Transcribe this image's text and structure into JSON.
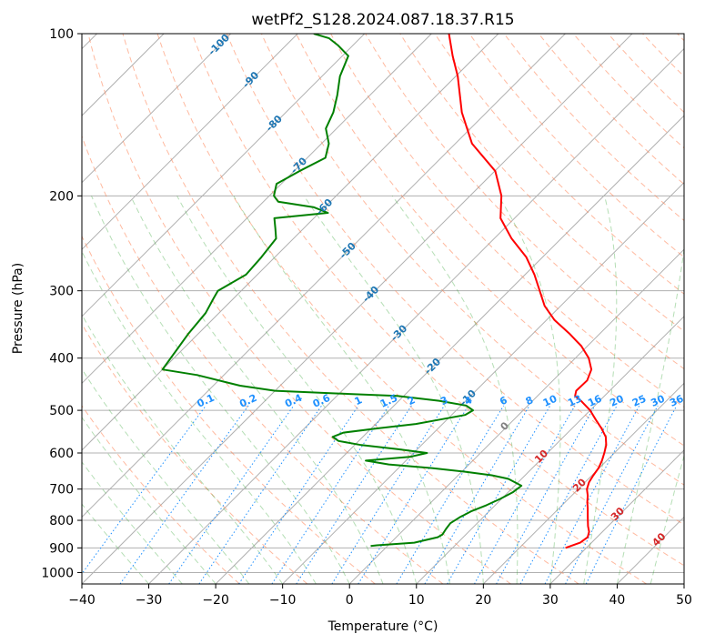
{
  "chart_data": {
    "type": "line",
    "subtype": "skew-t log-p diagram",
    "title": "wetPf2_S128.2024.087.18.37.R15",
    "xlabel": "Temperature (°C)",
    "ylabel": "Pressure (hPa)",
    "xlim": [
      -40,
      50
    ],
    "ylim": [
      1050,
      100
    ],
    "y_scale": "log",
    "x_ticks": [
      "−40",
      "−30",
      "−20",
      "−10",
      "0",
      "10",
      "20",
      "30",
      "40",
      "50"
    ],
    "y_ticks": [
      "100",
      "200",
      "300",
      "400",
      "500",
      "600",
      "700",
      "800",
      "900",
      "1000"
    ],
    "grid": true,
    "series": [
      {
        "role": "temperature",
        "color": "#ff0000",
        "points": [
          [
            900,
            26.9
          ],
          [
            880,
            28.3
          ],
          [
            860,
            28.6
          ],
          [
            840,
            28.0
          ],
          [
            820,
            27.0
          ],
          [
            800,
            26.1
          ],
          [
            780,
            25.2
          ],
          [
            760,
            24.3
          ],
          [
            740,
            23.3
          ],
          [
            720,
            22.4
          ],
          [
            700,
            21.3
          ],
          [
            680,
            20.6
          ],
          [
            660,
            20.2
          ],
          [
            640,
            19.9
          ],
          [
            620,
            19.3
          ],
          [
            600,
            18.5
          ],
          [
            580,
            17.6
          ],
          [
            560,
            16.3
          ],
          [
            540,
            14.4
          ],
          [
            520,
            12.2
          ],
          [
            500,
            10.0
          ],
          [
            480,
            7.2
          ],
          [
            470,
            5.6
          ],
          [
            460,
            5.0
          ],
          [
            440,
            5.1
          ],
          [
            420,
            4.1
          ],
          [
            400,
            2.0
          ],
          [
            380,
            -0.9
          ],
          [
            360,
            -4.6
          ],
          [
            340,
            -8.8
          ],
          [
            320,
            -12.4
          ],
          [
            300,
            -15.4
          ],
          [
            280,
            -18.6
          ],
          [
            260,
            -22.4
          ],
          [
            240,
            -27.4
          ],
          [
            220,
            -32.1
          ],
          [
            200,
            -35.3
          ],
          [
            180,
            -39.9
          ],
          [
            160,
            -47.5
          ],
          [
            140,
            -53.7
          ],
          [
            120,
            -59.7
          ],
          [
            110,
            -63.5
          ],
          [
            100,
            -67.4
          ]
        ]
      },
      {
        "role": "dewpoint",
        "color": "#008000",
        "points": [
          [
            893,
            -2.5
          ],
          [
            890,
            -1.7
          ],
          [
            880,
            3.5
          ],
          [
            860,
            6.2
          ],
          [
            850,
            6.5
          ],
          [
            830,
            6.2
          ],
          [
            810,
            6.0
          ],
          [
            790,
            6.5
          ],
          [
            770,
            7.3
          ],
          [
            750,
            8.7
          ],
          [
            730,
            9.8
          ],
          [
            710,
            10.7
          ],
          [
            690,
            11.0
          ],
          [
            670,
            8.0
          ],
          [
            660,
            5.0
          ],
          [
            650,
            0.5
          ],
          [
            640,
            -5.0
          ],
          [
            630,
            -12.0
          ],
          [
            620,
            -16.0
          ],
          [
            610,
            -10.0
          ],
          [
            600,
            -8.0
          ],
          [
            590,
            -13.0
          ],
          [
            580,
            -19.0
          ],
          [
            570,
            -23.0
          ],
          [
            560,
            -24.5
          ],
          [
            550,
            -23.5
          ],
          [
            540,
            -19.0
          ],
          [
            530,
            -14.0
          ],
          [
            520,
            -11.0
          ],
          [
            510,
            -8.0
          ],
          [
            500,
            -7.5
          ],
          [
            490,
            -9.2
          ],
          [
            480,
            -14.0
          ],
          [
            470,
            -21.0
          ],
          [
            465,
            -31.0
          ],
          [
            460,
            -40.0
          ],
          [
            450,
            -46.0
          ],
          [
            430,
            -54.0
          ],
          [
            420,
            -60.0
          ],
          [
            360,
            -61.5
          ],
          [
            330,
            -62.0
          ],
          [
            310,
            -63.0
          ],
          [
            300,
            -63.5
          ],
          [
            280,
            -61.7
          ],
          [
            260,
            -62.0
          ],
          [
            240,
            -62.6
          ],
          [
            230,
            -64.2
          ],
          [
            220,
            -65.9
          ],
          [
            215,
            -58.7
          ],
          [
            210,
            -61.6
          ],
          [
            205,
            -67.8
          ],
          [
            200,
            -69.3
          ],
          [
            190,
            -70.7
          ],
          [
            180,
            -69.2
          ],
          [
            170,
            -67.3
          ],
          [
            160,
            -68.9
          ],
          [
            150,
            -71.6
          ],
          [
            140,
            -72.9
          ],
          [
            130,
            -74.9
          ],
          [
            120,
            -77.3
          ],
          [
            110,
            -79.1
          ],
          [
            105,
            -82.3
          ],
          [
            102,
            -84.6
          ],
          [
            100,
            -87.6
          ]
        ]
      }
    ],
    "dry_adiabat_labels": [
      "-100",
      "-90",
      "-80",
      "-70",
      "-60",
      "-50",
      "-40",
      "-30",
      "-20",
      "-10"
    ],
    "moist_adiabat_labels": [
      "0",
      "10",
      "20",
      "30",
      "40"
    ],
    "mixing_ratio_labels": [
      "0.1",
      "0.2",
      "0.4",
      "0.6",
      "1",
      "1.5",
      "2",
      "3",
      "4",
      "6",
      "8",
      "10",
      "13",
      "16",
      "20",
      "25",
      "30",
      "36"
    ]
  }
}
